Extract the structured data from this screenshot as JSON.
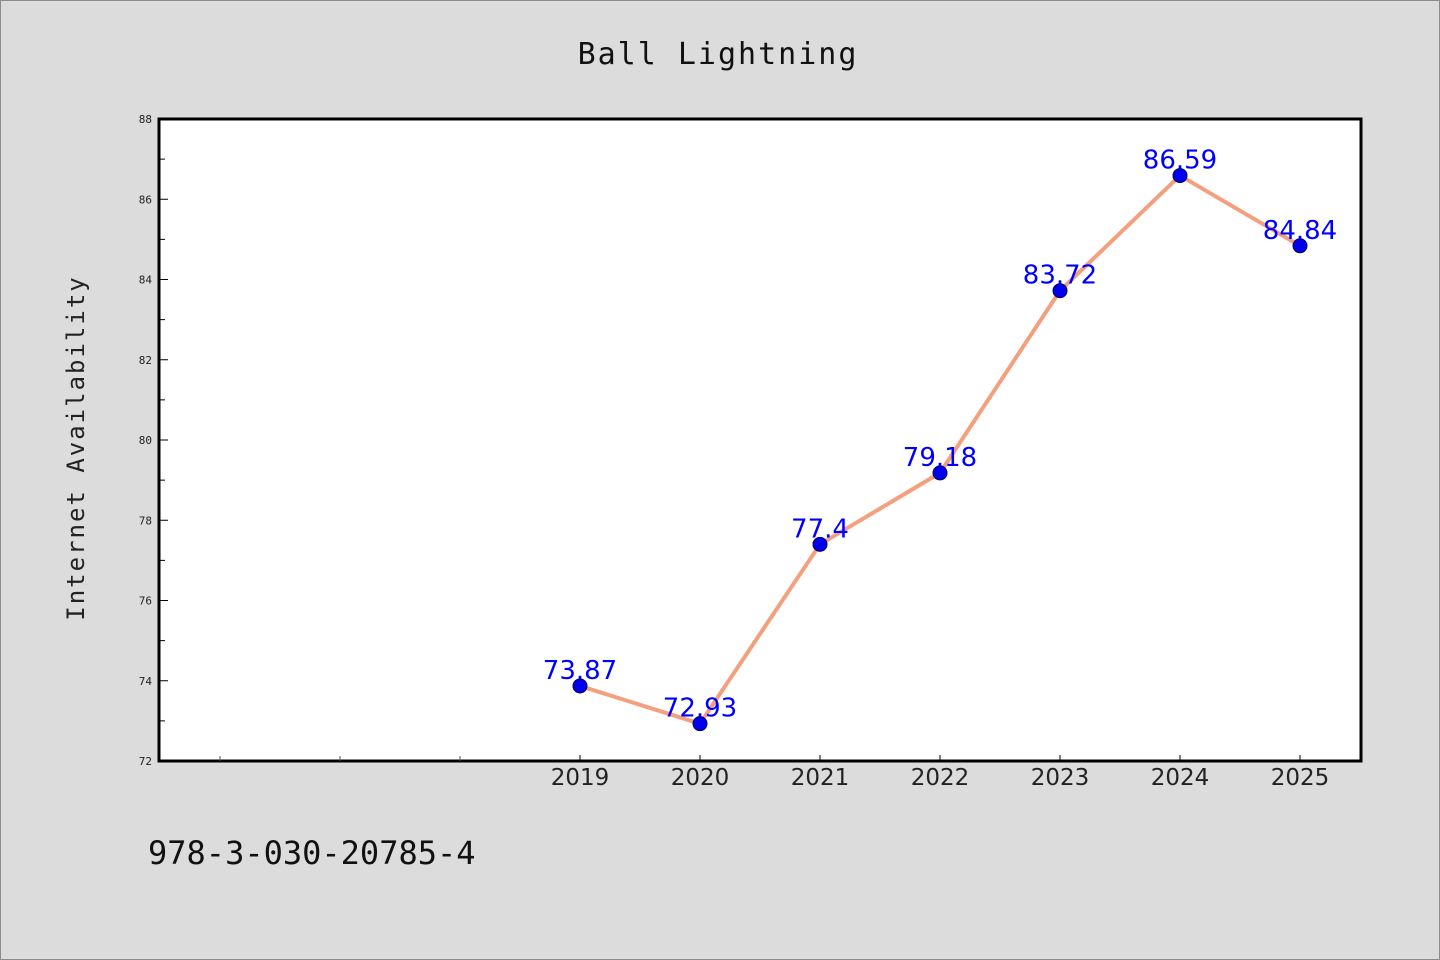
{
  "chart_data": {
    "type": "line",
    "title": "Ball Lightning",
    "xlabel": "",
    "ylabel": "Internet Availability",
    "categories": [
      "2019",
      "2020",
      "2021",
      "2022",
      "2023",
      "2024",
      "2025"
    ],
    "series": [
      {
        "values": [
          73.87,
          72.93,
          77.4,
          79.18,
          83.72,
          86.59,
          84.84
        ],
        "labels": [
          "73.87",
          "72.93",
          "77.4",
          "79.18",
          "83.72",
          "86.59",
          "84.84"
        ]
      }
    ],
    "ylim": [
      72,
      88
    ],
    "yticks": [
      "72",
      "74",
      "76",
      "78",
      "80",
      "82",
      "84",
      "86",
      "88"
    ],
    "grid": false,
    "legend": "none",
    "colors": {
      "background": "#dcdcdc",
      "plot_background": "#ffffff",
      "line": "#f4a07e",
      "marker": "#0000ee",
      "data_label": "#0000ff",
      "text": "#222222"
    }
  },
  "footer": {
    "isbn": "978-3-030-20785-4"
  }
}
